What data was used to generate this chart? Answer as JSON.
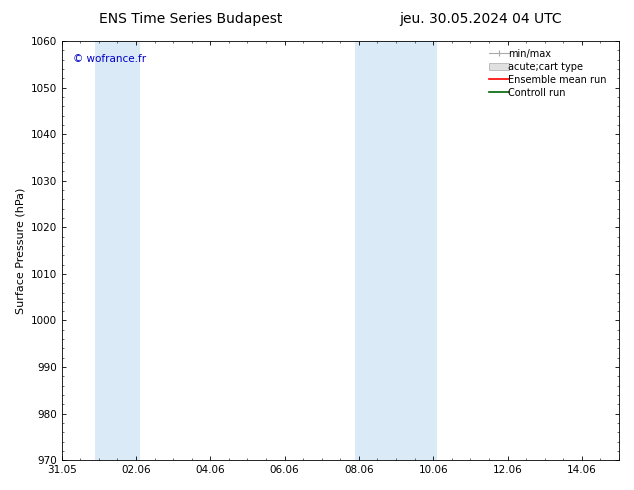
{
  "title_left": "ENS Time Series Budapest",
  "title_right": "jeu. 30.05.2024 04 UTC",
  "ylabel": "Surface Pressure (hPa)",
  "ylim": [
    970,
    1060
  ],
  "yticks": [
    970,
    980,
    990,
    1000,
    1010,
    1020,
    1030,
    1040,
    1050,
    1060
  ],
  "xtick_labels": [
    "31.05",
    "02.06",
    "04.06",
    "06.06",
    "08.06",
    "10.06",
    "12.06",
    "14.06"
  ],
  "xtick_positions": [
    0,
    2,
    4,
    6,
    8,
    10,
    12,
    14
  ],
  "xlim": [
    0,
    15
  ],
  "shaded_bands": [
    {
      "x_start": 0.9,
      "x_end": 2.1
    },
    {
      "x_start": 7.9,
      "x_end": 10.1
    }
  ],
  "shaded_color": "#daeaf7",
  "background_color": "#ffffff",
  "watermark": "© wofrance.fr",
  "watermark_color": "#0000cc",
  "legend_entries": [
    {
      "label": "min/max",
      "color": "#aaaaaa",
      "type": "hline"
    },
    {
      "label": "acute;cart type",
      "color": "#cccccc",
      "type": "box"
    },
    {
      "label": "Ensemble mean run",
      "color": "#ff0000",
      "type": "line"
    },
    {
      "label": "Controll run",
      "color": "#006400",
      "type": "line"
    }
  ],
  "title_fontsize": 10,
  "ylabel_fontsize": 8,
  "tick_fontsize": 7.5,
  "legend_fontsize": 7,
  "watermark_fontsize": 7.5,
  "figsize": [
    6.34,
    4.9
  ],
  "dpi": 100
}
